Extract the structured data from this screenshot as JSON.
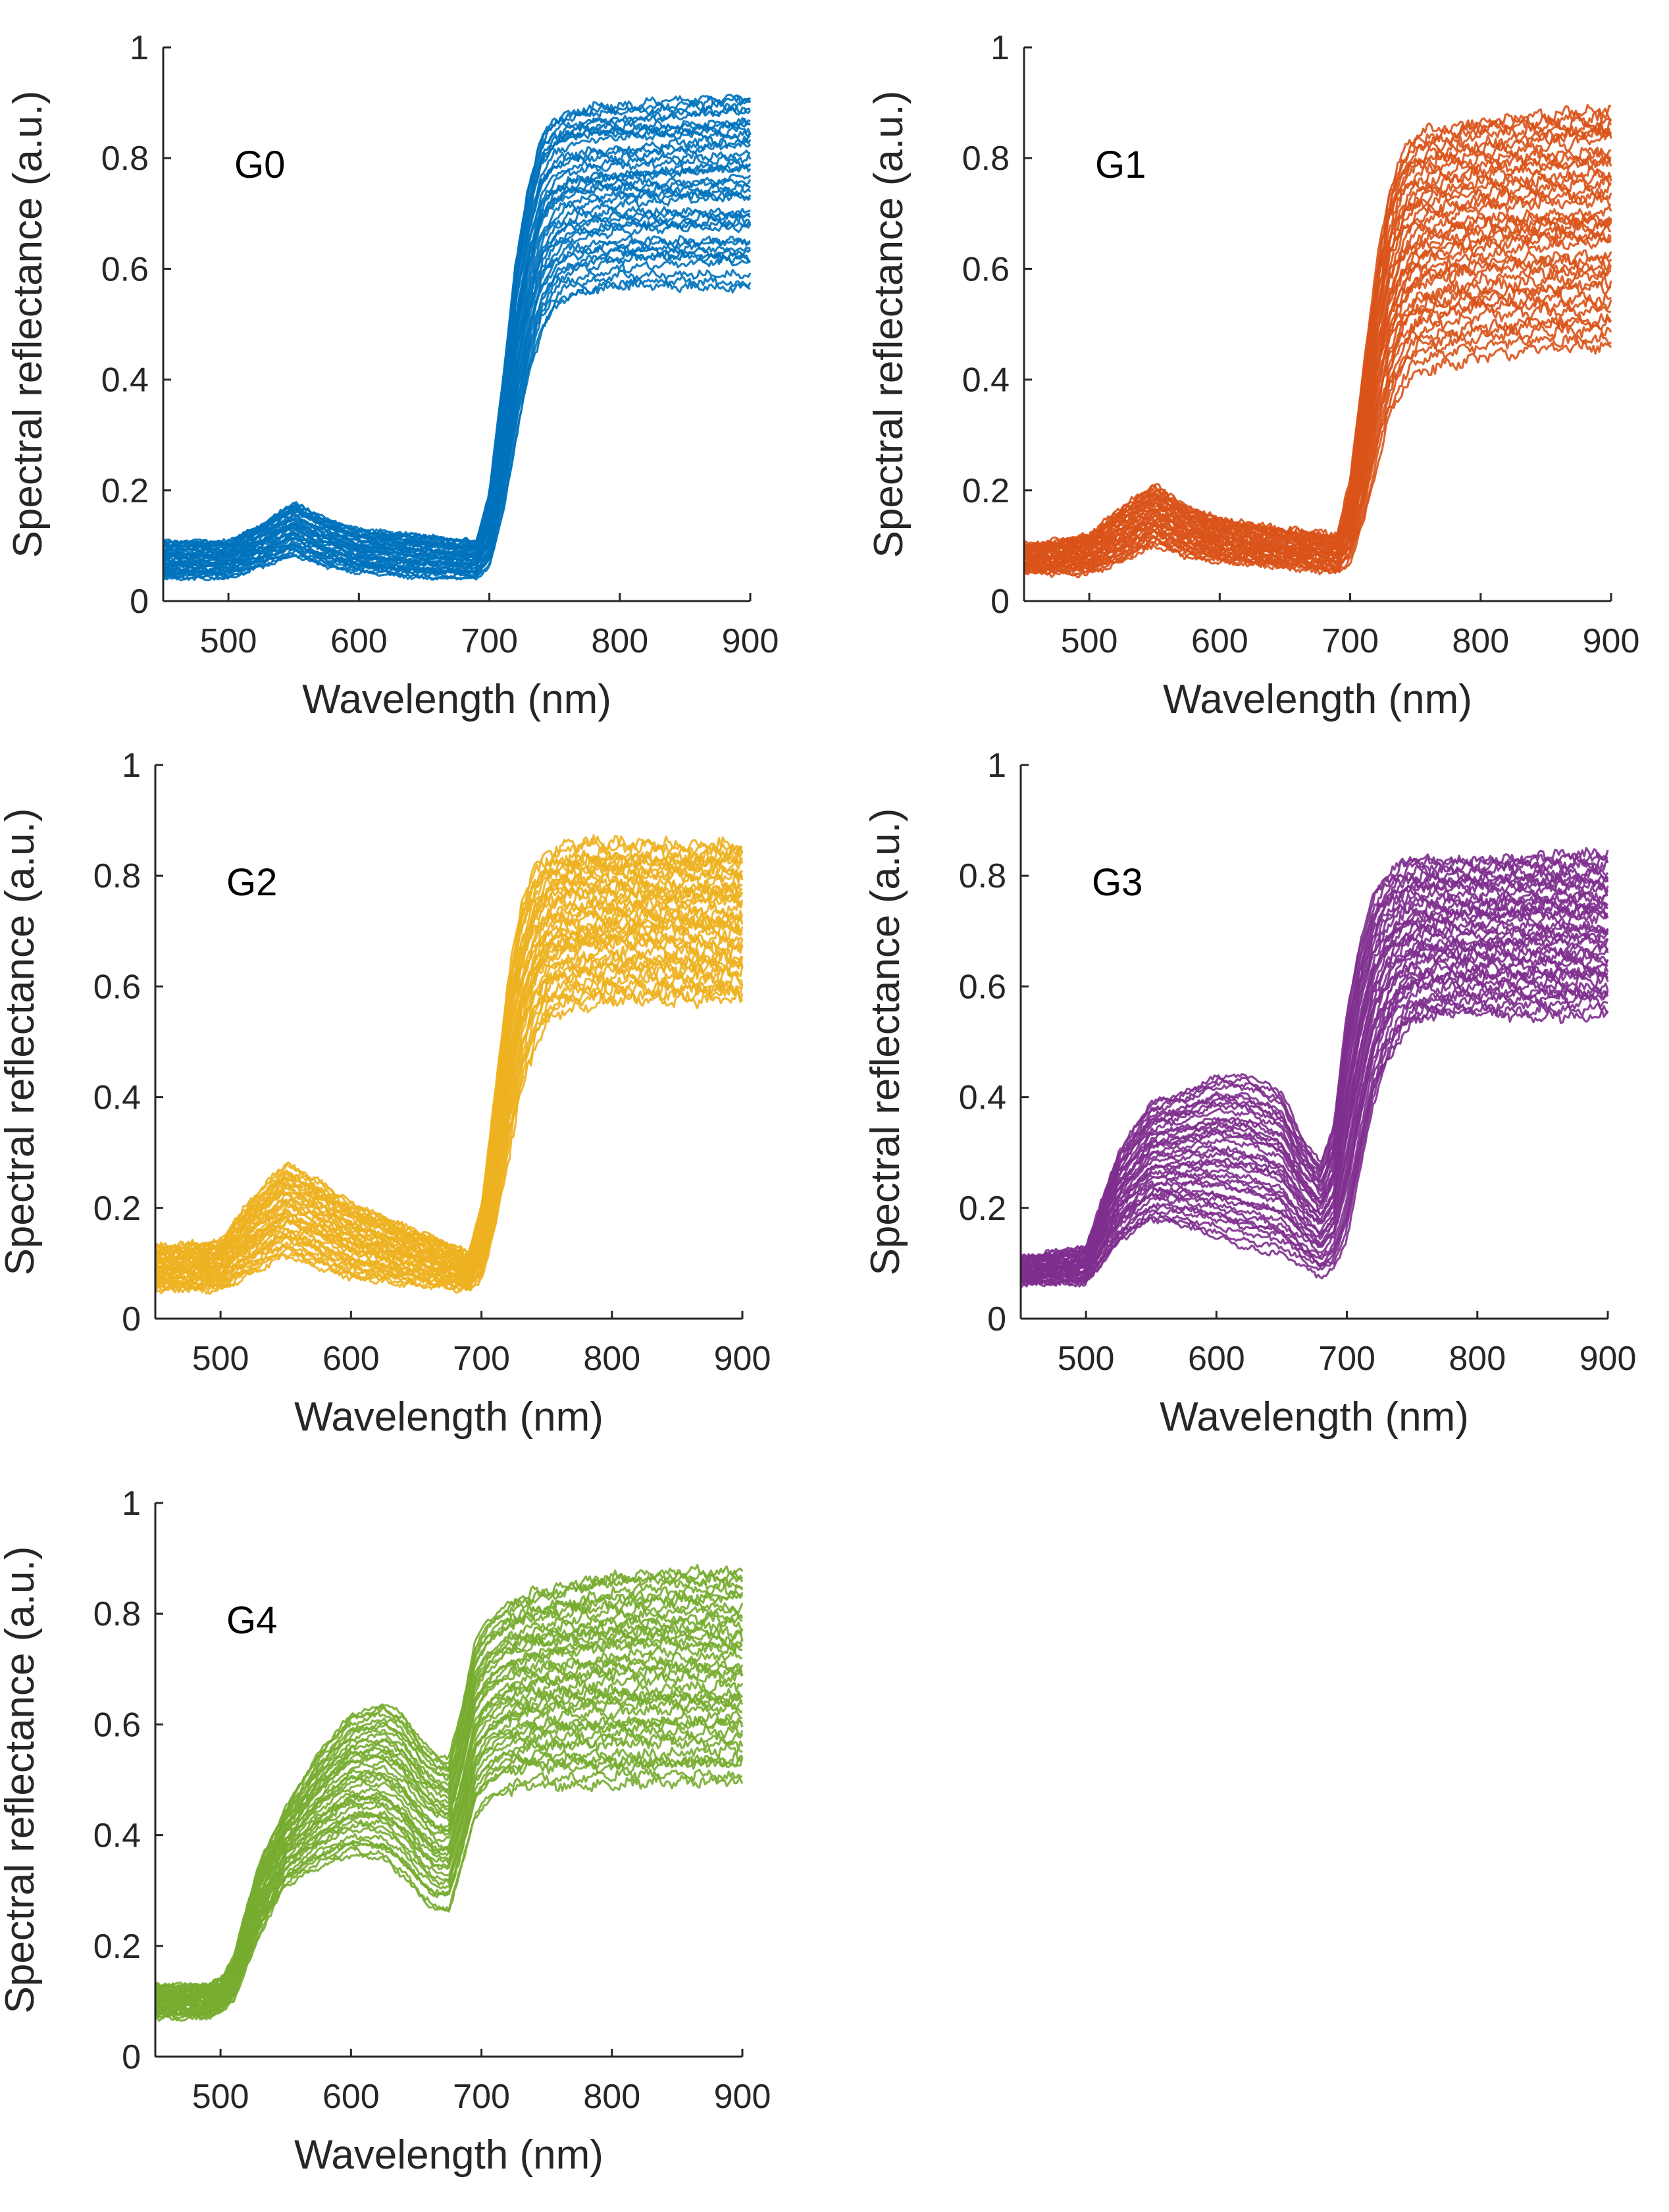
{
  "figure": {
    "xlabel": "Wavelength (nm)",
    "ylabel": "Spectral reflectance (a.u.)",
    "x_ticks": [
      "500",
      "600",
      "700",
      "800",
      "900"
    ],
    "y_ticks": [
      "0",
      "0.2",
      "0.4",
      "0.6",
      "0.8",
      "1"
    ]
  },
  "chart_data": [
    {
      "type": "line",
      "title": "G0",
      "color": "#0072BD",
      "xlabel": "Wavelength (nm)",
      "ylabel": "Spectral reflectance (a.u.)",
      "xlim": [
        450,
        900
      ],
      "ylim": [
        0,
        1
      ],
      "series_count": 40,
      "noise": 0.006,
      "x": [
        450,
        500,
        525,
        550,
        575,
        600,
        650,
        690,
        700,
        710,
        720,
        730,
        740,
        750,
        760,
        780,
        800,
        850,
        900
      ],
      "envelope": {
        "min": [
          0.04,
          0.04,
          0.06,
          0.08,
          0.06,
          0.05,
          0.04,
          0.04,
          0.06,
          0.15,
          0.28,
          0.4,
          0.48,
          0.52,
          0.54,
          0.55,
          0.56,
          0.56,
          0.56
        ],
        "max": [
          0.11,
          0.11,
          0.14,
          0.18,
          0.15,
          0.13,
          0.12,
          0.11,
          0.2,
          0.4,
          0.62,
          0.76,
          0.85,
          0.88,
          0.89,
          0.9,
          0.9,
          0.91,
          0.92
        ]
      }
    },
    {
      "type": "line",
      "title": "G1",
      "color": "#D95319",
      "xlabel": "Wavelength (nm)",
      "ylabel": "Spectral reflectance (a.u.)",
      "xlim": [
        450,
        900
      ],
      "ylim": [
        0,
        1
      ],
      "series_count": 40,
      "noise": 0.009,
      "x": [
        450,
        500,
        525,
        550,
        575,
        600,
        650,
        690,
        700,
        710,
        720,
        730,
        740,
        750,
        760,
        780,
        800,
        850,
        900
      ],
      "envelope": {
        "min": [
          0.05,
          0.05,
          0.07,
          0.1,
          0.08,
          0.07,
          0.06,
          0.05,
          0.07,
          0.14,
          0.24,
          0.33,
          0.38,
          0.41,
          0.42,
          0.43,
          0.44,
          0.45,
          0.45
        ],
        "max": [
          0.1,
          0.12,
          0.17,
          0.21,
          0.17,
          0.15,
          0.13,
          0.12,
          0.22,
          0.42,
          0.6,
          0.74,
          0.81,
          0.84,
          0.85,
          0.86,
          0.87,
          0.88,
          0.89
        ]
      }
    },
    {
      "type": "line",
      "title": "G2",
      "color": "#EDB120",
      "xlabel": "Wavelength (nm)",
      "ylabel": "Spectral reflectance (a.u.)",
      "xlim": [
        450,
        900
      ],
      "ylim": [
        0,
        1
      ],
      "series_count": 40,
      "noise": 0.01,
      "x": [
        450,
        500,
        525,
        550,
        575,
        600,
        650,
        690,
        700,
        710,
        720,
        730,
        740,
        750,
        760,
        780,
        800,
        850,
        900
      ],
      "envelope": {
        "min": [
          0.05,
          0.05,
          0.08,
          0.11,
          0.09,
          0.07,
          0.06,
          0.05,
          0.07,
          0.15,
          0.28,
          0.4,
          0.48,
          0.53,
          0.55,
          0.56,
          0.57,
          0.57,
          0.57
        ],
        "max": [
          0.13,
          0.14,
          0.22,
          0.28,
          0.25,
          0.21,
          0.16,
          0.12,
          0.2,
          0.4,
          0.6,
          0.74,
          0.81,
          0.84,
          0.85,
          0.86,
          0.86,
          0.86,
          0.86
        ]
      }
    },
    {
      "type": "line",
      "title": "G3",
      "color": "#7E2F8E",
      "xlabel": "Wavelength (nm)",
      "ylabel": "Spectral reflectance (a.u.)",
      "xlim": [
        450,
        900
      ],
      "ylim": [
        0,
        1
      ],
      "series_count": 40,
      "noise": 0.008,
      "x": [
        450,
        500,
        525,
        550,
        575,
        600,
        625,
        650,
        665,
        680,
        690,
        700,
        710,
        720,
        730,
        740,
        750,
        760,
        780,
        800,
        850,
        900
      ],
      "envelope": {
        "min": [
          0.06,
          0.06,
          0.13,
          0.17,
          0.16,
          0.14,
          0.12,
          0.11,
          0.09,
          0.07,
          0.08,
          0.13,
          0.25,
          0.37,
          0.44,
          0.49,
          0.52,
          0.53,
          0.54,
          0.54,
          0.54,
          0.54
        ],
        "max": [
          0.11,
          0.13,
          0.3,
          0.39,
          0.41,
          0.44,
          0.44,
          0.41,
          0.33,
          0.28,
          0.35,
          0.55,
          0.68,
          0.76,
          0.8,
          0.82,
          0.83,
          0.83,
          0.83,
          0.83,
          0.84,
          0.84
        ]
      }
    },
    {
      "type": "line",
      "title": "G4",
      "color": "#77AC30",
      "xlabel": "Wavelength (nm)",
      "ylabel": "Spectral reflectance (a.u.)",
      "xlim": [
        450,
        900
      ],
      "ylim": [
        0,
        1
      ],
      "series_count": 40,
      "noise": 0.008,
      "x": [
        450,
        490,
        500,
        510,
        520,
        530,
        550,
        575,
        600,
        625,
        640,
        655,
        665,
        675,
        685,
        695,
        705,
        720,
        740,
        760,
        780,
        800,
        850,
        900
      ],
      "envelope": {
        "min": [
          0.07,
          0.07,
          0.08,
          0.1,
          0.16,
          0.22,
          0.31,
          0.34,
          0.36,
          0.35,
          0.32,
          0.28,
          0.26,
          0.26,
          0.34,
          0.43,
          0.46,
          0.48,
          0.49,
          0.49,
          0.49,
          0.49,
          0.49,
          0.49
        ],
        "max": [
          0.13,
          0.13,
          0.14,
          0.18,
          0.27,
          0.35,
          0.45,
          0.55,
          0.62,
          0.64,
          0.62,
          0.57,
          0.55,
          0.54,
          0.63,
          0.75,
          0.79,
          0.82,
          0.84,
          0.85,
          0.86,
          0.87,
          0.88,
          0.88
        ]
      }
    }
  ]
}
